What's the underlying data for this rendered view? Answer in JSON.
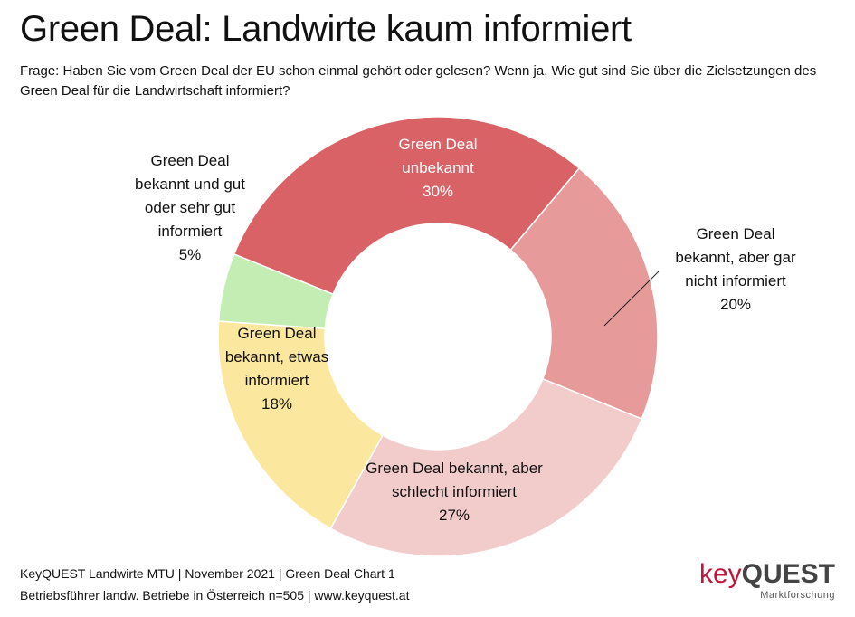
{
  "title": "Green Deal: Landwirte kaum informiert",
  "question": "Frage: Haben Sie vom Green Deal der EU schon einmal gehört oder gelesen? Wenn ja, Wie gut sind Sie über die Zielsetzungen des Green Deal für die Landwirtschaft informiert?",
  "chart_data": {
    "type": "pie",
    "donut": true,
    "categories": [
      "Green Deal unbekannt",
      "Green Deal bekannt, aber gar nicht informiert",
      "Green Deal bekannt, aber schlecht informiert",
      "Green Deal bekannt, etwas informiert",
      "Green Deal bekannt und gut oder sehr gut informiert"
    ],
    "values": [
      30,
      20,
      27,
      18,
      5
    ],
    "value_labels": [
      "30%",
      "20%",
      "27%",
      "18%",
      "5%"
    ],
    "colors": [
      "#d96266",
      "#e79a9a",
      "#f2cbcb",
      "#fbe79d",
      "#c3edb3"
    ],
    "label_lines": [
      [
        "Green Deal",
        "unbekannt",
        "30%"
      ],
      [
        "Green Deal",
        "bekannt, aber gar",
        "nicht informiert",
        "20%"
      ],
      [
        "Green Deal bekannt, aber",
        "schlecht informiert",
        "27%"
      ],
      [
        "Green Deal",
        "bekannt, etwas",
        "informiert",
        "18%"
      ],
      [
        "Green Deal",
        "bekannt und gut",
        "oder sehr gut",
        "informiert",
        "5%"
      ]
    ]
  },
  "footer": {
    "line1": "KeyQUEST Landwirte MTU | November 2021 | Green Deal Chart 1",
    "line2": "Betriebsführer landw. Betriebe in Österreich n=505 | www.keyquest.at"
  },
  "logo": {
    "key": "key",
    "quest": "QUEST",
    "sub": "Marktforschung"
  }
}
